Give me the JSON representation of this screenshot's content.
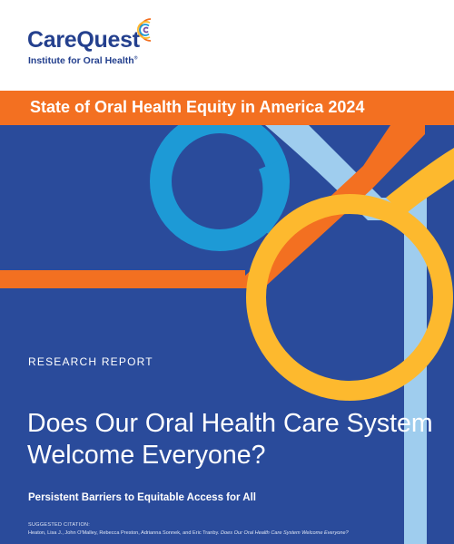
{
  "brand": {
    "name": "CareQuest",
    "tagline": "Institute for Oral Health",
    "registered_mark": "®",
    "logo_icon": "concentric-arcs-logo-icon",
    "colors": {
      "navy": "#24408e",
      "orange": "#f37021",
      "cover_blue": "#2a4b9b",
      "sky": "#1d9ad6",
      "light_blue": "#9fcdee",
      "gold": "#fdb92e"
    }
  },
  "series_title": "State of Oral Health Equity in America 2024",
  "report": {
    "type": "RESEARCH REPORT",
    "title": "Does Our Oral Health Care System Welcome Everyone?",
    "subtitle": "Persistent Barriers to Equitable Access for All"
  },
  "citation": {
    "label": "SUGGESTED CITATION:",
    "authors": "Heaton, Lisa J., John O'Malley, Rebecca Preston, Adrianna Sonnek, and Eric Tranby.",
    "work_title": "Does Our Oral Health Care System Welcome Everyone?"
  }
}
